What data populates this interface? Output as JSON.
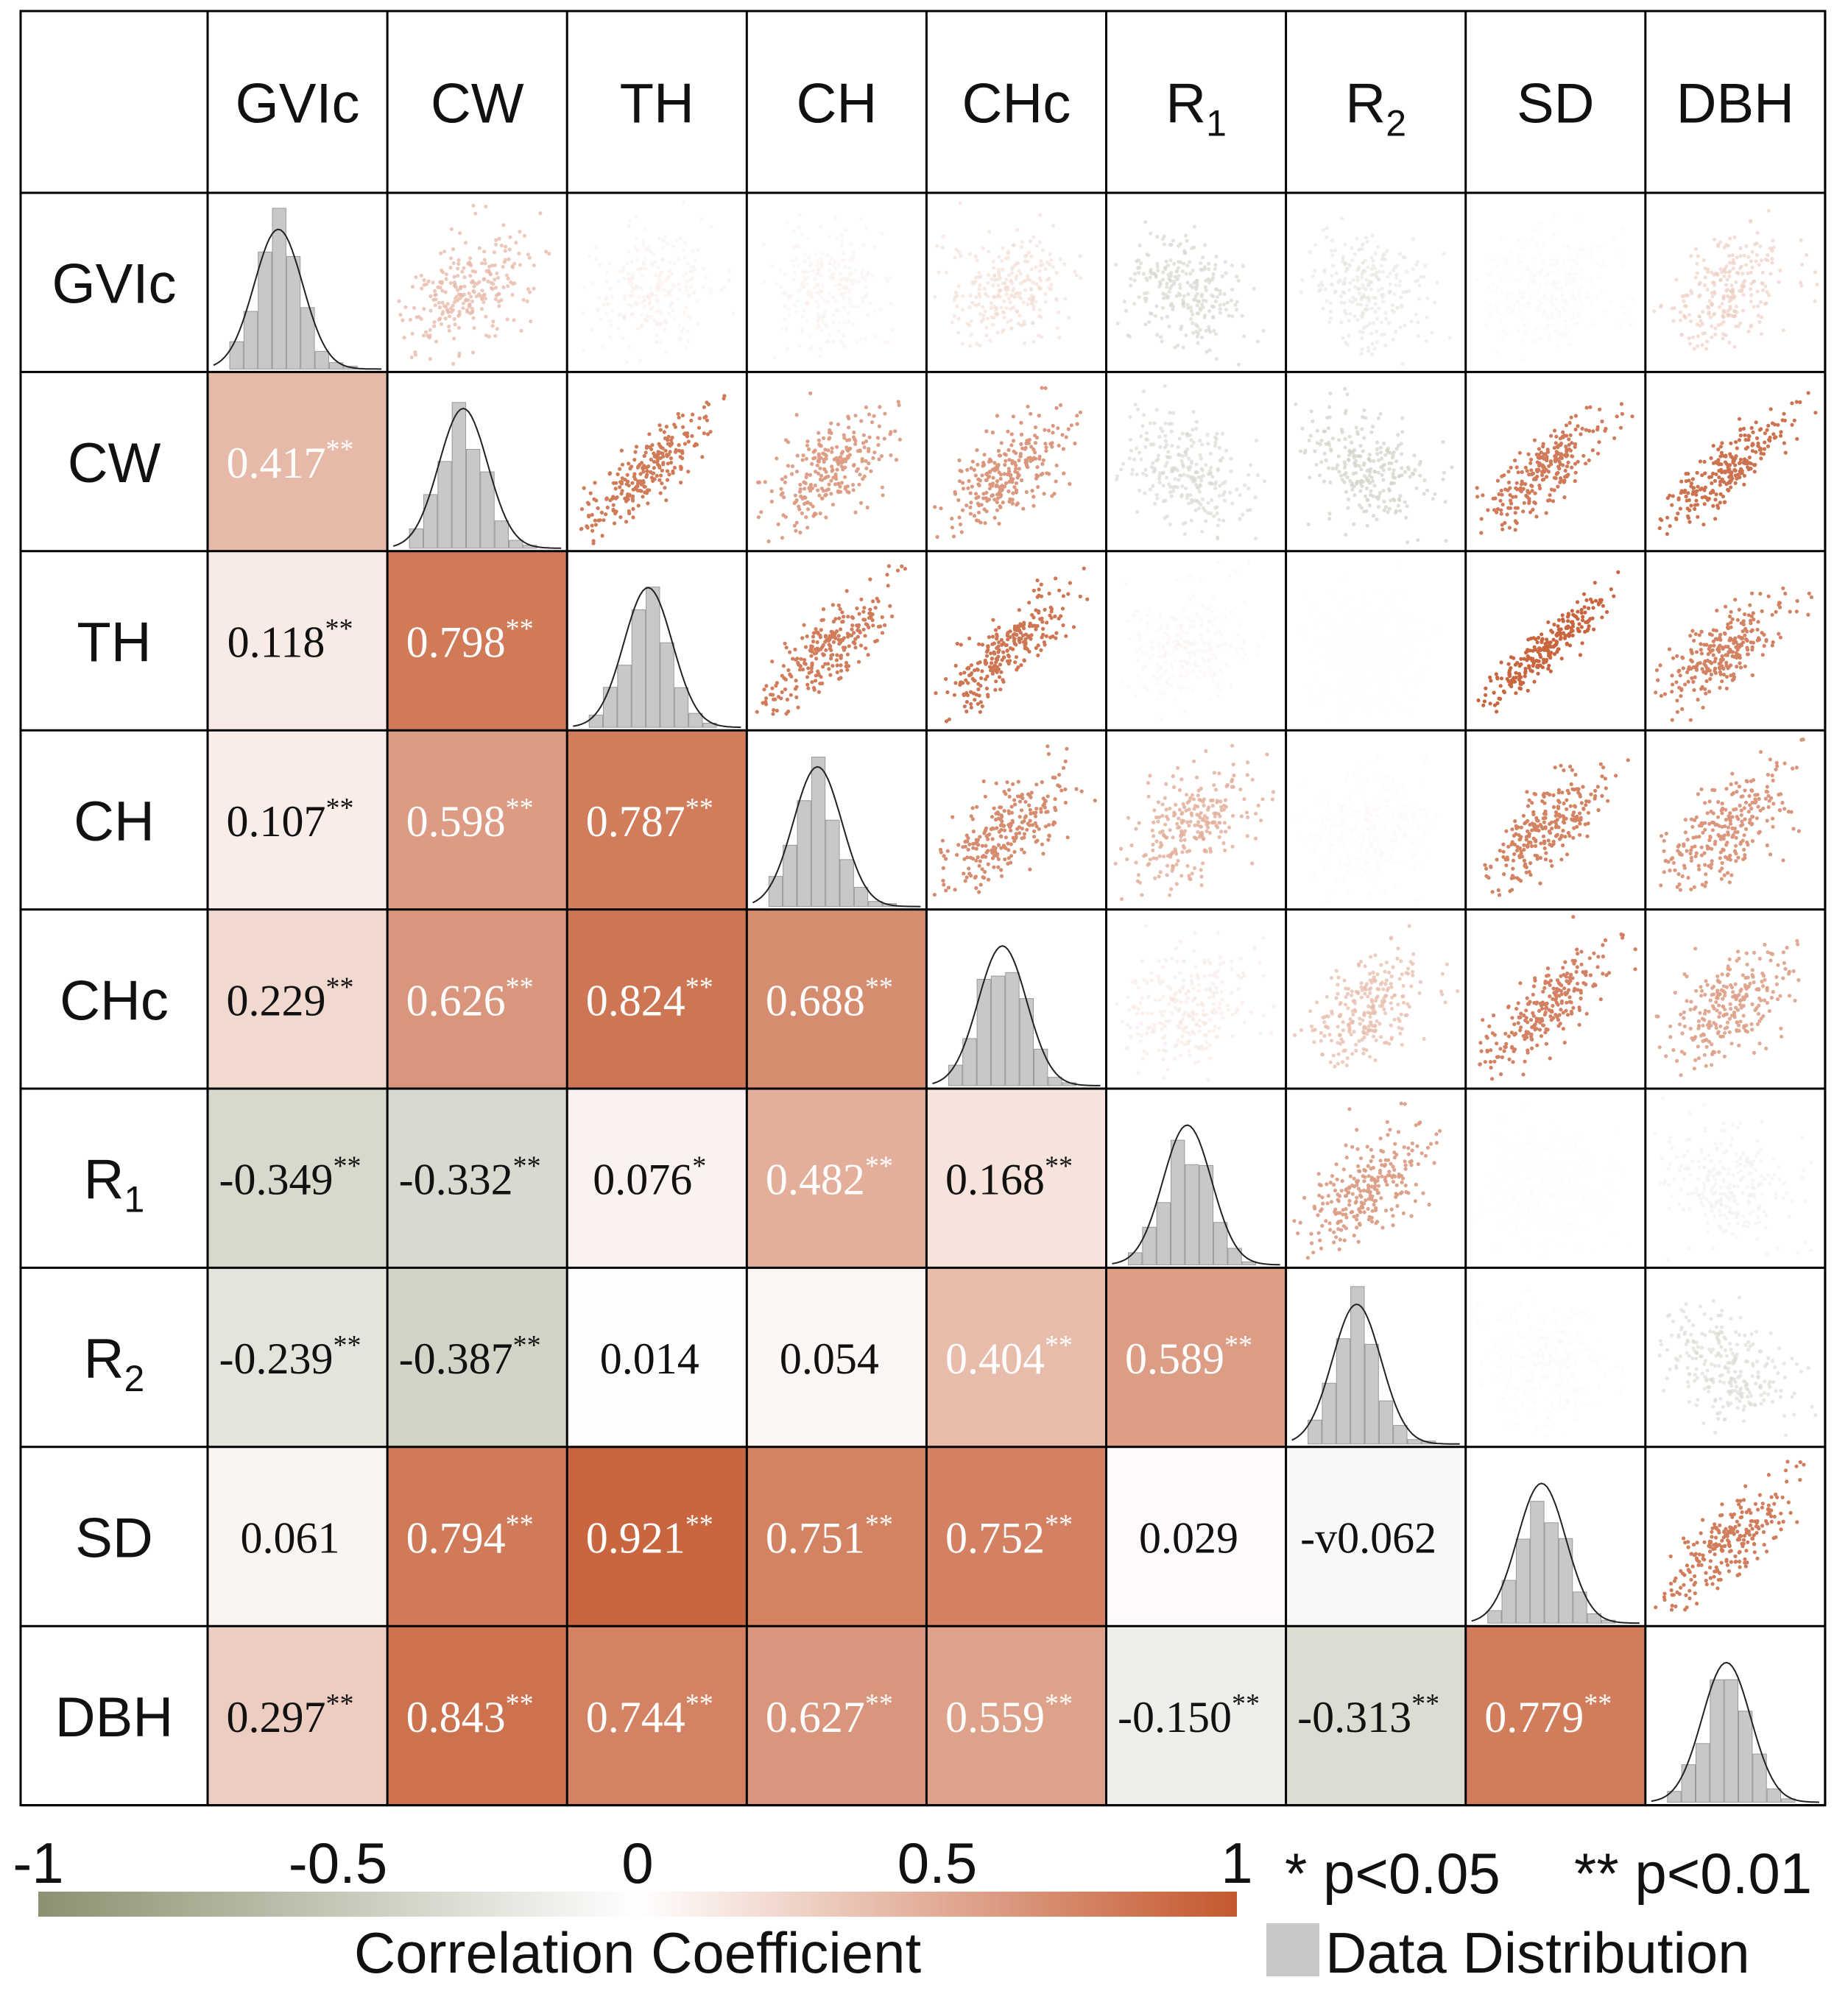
{
  "chart_data": {
    "type": "heatmap",
    "variables": [
      {
        "label": "GVIc",
        "sub": ""
      },
      {
        "label": "CW",
        "sub": ""
      },
      {
        "label": "TH",
        "sub": ""
      },
      {
        "label": "CH",
        "sub": ""
      },
      {
        "label": "CHc",
        "sub": ""
      },
      {
        "label": "R",
        "sub": "1"
      },
      {
        "label": "R",
        "sub": "2"
      },
      {
        "label": "SD",
        "sub": ""
      },
      {
        "label": "DBH",
        "sub": ""
      }
    ],
    "lower_triangle": [
      {
        "row": 1,
        "col": 0,
        "value": 0.417,
        "text": "0.417",
        "sig": "**"
      },
      {
        "row": 2,
        "col": 0,
        "value": 0.118,
        "text": "0.118",
        "sig": "**"
      },
      {
        "row": 2,
        "col": 1,
        "value": 0.798,
        "text": "0.798",
        "sig": "**"
      },
      {
        "row": 3,
        "col": 0,
        "value": 0.107,
        "text": "0.107",
        "sig": "**"
      },
      {
        "row": 3,
        "col": 1,
        "value": 0.598,
        "text": "0.598",
        "sig": "**"
      },
      {
        "row": 3,
        "col": 2,
        "value": 0.787,
        "text": "0.787",
        "sig": "**"
      },
      {
        "row": 4,
        "col": 0,
        "value": 0.229,
        "text": "0.229",
        "sig": "**"
      },
      {
        "row": 4,
        "col": 1,
        "value": 0.626,
        "text": "0.626",
        "sig": "**"
      },
      {
        "row": 4,
        "col": 2,
        "value": 0.824,
        "text": "0.824",
        "sig": "**"
      },
      {
        "row": 4,
        "col": 3,
        "value": 0.688,
        "text": "0.688",
        "sig": "**"
      },
      {
        "row": 5,
        "col": 0,
        "value": -0.349,
        "text": "-0.349",
        "sig": "**"
      },
      {
        "row": 5,
        "col": 1,
        "value": -0.332,
        "text": "-0.332",
        "sig": "**"
      },
      {
        "row": 5,
        "col": 2,
        "value": 0.076,
        "text": "0.076",
        "sig": "*"
      },
      {
        "row": 5,
        "col": 3,
        "value": 0.482,
        "text": "0.482",
        "sig": "**"
      },
      {
        "row": 5,
        "col": 4,
        "value": 0.168,
        "text": "0.168",
        "sig": "**"
      },
      {
        "row": 6,
        "col": 0,
        "value": -0.239,
        "text": "-0.239",
        "sig": "**"
      },
      {
        "row": 6,
        "col": 1,
        "value": -0.387,
        "text": "-0.387",
        "sig": "**"
      },
      {
        "row": 6,
        "col": 2,
        "value": 0.014,
        "text": "0.014",
        "sig": ""
      },
      {
        "row": 6,
        "col": 3,
        "value": 0.054,
        "text": "0.054",
        "sig": ""
      },
      {
        "row": 6,
        "col": 4,
        "value": 0.404,
        "text": "0.404",
        "sig": "**"
      },
      {
        "row": 6,
        "col": 5,
        "value": 0.589,
        "text": "0.589",
        "sig": "**"
      },
      {
        "row": 7,
        "col": 0,
        "value": 0.061,
        "text": "0.061",
        "sig": ""
      },
      {
        "row": 7,
        "col": 1,
        "value": 0.794,
        "text": "0.794",
        "sig": "**"
      },
      {
        "row": 7,
        "col": 2,
        "value": 0.921,
        "text": "0.921",
        "sig": "**"
      },
      {
        "row": 7,
        "col": 3,
        "value": 0.751,
        "text": "0.751",
        "sig": "**"
      },
      {
        "row": 7,
        "col": 4,
        "value": 0.752,
        "text": "0.752",
        "sig": "**"
      },
      {
        "row": 7,
        "col": 5,
        "value": 0.029,
        "text": "0.029",
        "sig": ""
      },
      {
        "row": 7,
        "col": 6,
        "value": -0.062,
        "text": "-v0.062",
        "sig": ""
      },
      {
        "row": 8,
        "col": 0,
        "value": 0.297,
        "text": "0.297",
        "sig": "**"
      },
      {
        "row": 8,
        "col": 1,
        "value": 0.843,
        "text": "0.843",
        "sig": "**"
      },
      {
        "row": 8,
        "col": 2,
        "value": 0.744,
        "text": "0.744",
        "sig": "**"
      },
      {
        "row": 8,
        "col": 3,
        "value": 0.627,
        "text": "0.627",
        "sig": "**"
      },
      {
        "row": 8,
        "col": 4,
        "value": 0.559,
        "text": "0.559",
        "sig": "**"
      },
      {
        "row": 8,
        "col": 5,
        "value": -0.15,
        "text": "-0.150",
        "sig": "**"
      },
      {
        "row": 8,
        "col": 6,
        "value": -0.313,
        "text": "-0.313",
        "sig": "**"
      },
      {
        "row": 8,
        "col": 7,
        "value": 0.779,
        "text": "0.779",
        "sig": "**"
      }
    ],
    "upper_triangle": "scatter plots of each variable pair, colored by correlation coefficient",
    "diagonal": "histograms with fitted normal curves",
    "colorbar": {
      "title": "Correlation Coefficient",
      "range": [
        -1,
        1
      ],
      "ticks": [
        "-1",
        "-0.5",
        "0",
        "0.5",
        "1"
      ],
      "colors": {
        "negative": "#8b9170",
        "zero": "#ffffff",
        "positive": "#c4582e"
      }
    },
    "significance_legend": {
      "one_star": "* p<0.05",
      "two_star": "** p<0.01"
    },
    "distribution_legend": "Data Distribution",
    "colors": {
      "histogram": "#c8c8c8",
      "grid": "#000000"
    }
  }
}
